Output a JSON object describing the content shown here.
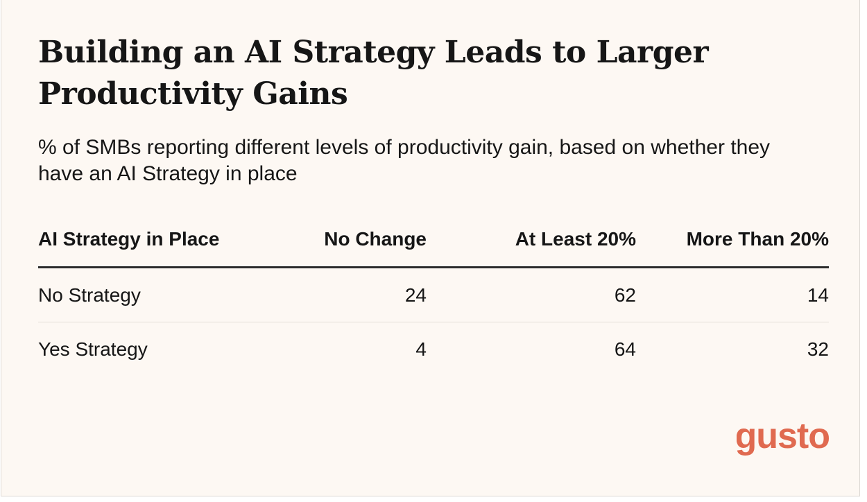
{
  "chart_data": {
    "type": "table",
    "title": "Building an AI Strategy Leads to Larger Productivity Gains",
    "subtitle": "% of SMBs reporting different levels of productivity gain, based on whether they have an AI Strategy in place",
    "columns": [
      "AI Strategy in Place",
      "No Change",
      "At Least 20%",
      "More Than 20%"
    ],
    "rows": [
      {
        "label": "No Strategy",
        "values": [
          24,
          62,
          14
        ]
      },
      {
        "label": "Yes Strategy",
        "values": [
          4,
          64,
          32
        ]
      }
    ]
  },
  "brand": {
    "logo_text": "gusto",
    "logo_color": "#e06a50"
  },
  "colors": {
    "background": "#fdf8f3",
    "text": "#161616",
    "header_rule": "#2b2b2b",
    "row_divider": "#e3ded8"
  }
}
